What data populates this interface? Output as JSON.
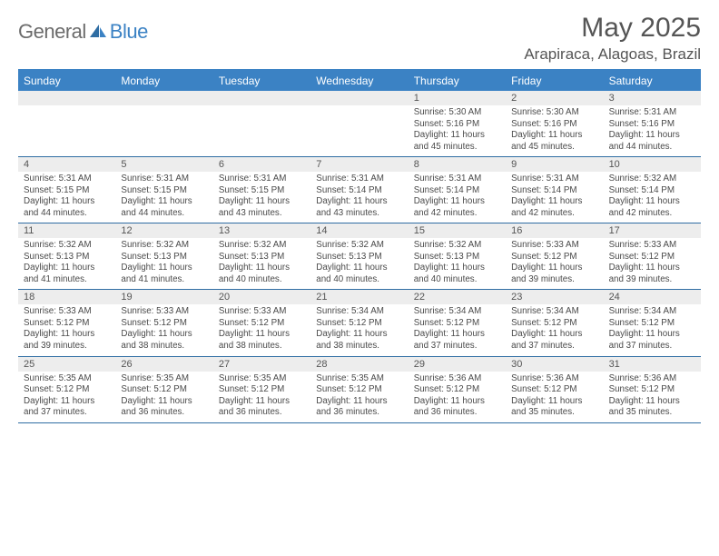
{
  "logo": {
    "text1": "General",
    "text2": "Blue"
  },
  "title": "May 2025",
  "location": "Arapiraca, Alagoas, Brazil",
  "colors": {
    "header_bg": "#3b82c4",
    "header_text": "#ffffff",
    "border": "#2f6da3",
    "daynum_bg": "#ededed",
    "body_text": "#4a4a4a",
    "title_text": "#555555"
  },
  "layout": {
    "columns": 7,
    "rows": 5,
    "day_font_size_pt": 7.5,
    "dow_font_size_pt": 9,
    "title_font_size_pt": 22
  },
  "day_names": [
    "Sunday",
    "Monday",
    "Tuesday",
    "Wednesday",
    "Thursday",
    "Friday",
    "Saturday"
  ],
  "weeks": [
    [
      {
        "n": "",
        "sr": "",
        "ss": "",
        "dl": ""
      },
      {
        "n": "",
        "sr": "",
        "ss": "",
        "dl": ""
      },
      {
        "n": "",
        "sr": "",
        "ss": "",
        "dl": ""
      },
      {
        "n": "",
        "sr": "",
        "ss": "",
        "dl": ""
      },
      {
        "n": "1",
        "sr": "Sunrise: 5:30 AM",
        "ss": "Sunset: 5:16 PM",
        "dl": "Daylight: 11 hours and 45 minutes."
      },
      {
        "n": "2",
        "sr": "Sunrise: 5:30 AM",
        "ss": "Sunset: 5:16 PM",
        "dl": "Daylight: 11 hours and 45 minutes."
      },
      {
        "n": "3",
        "sr": "Sunrise: 5:31 AM",
        "ss": "Sunset: 5:16 PM",
        "dl": "Daylight: 11 hours and 44 minutes."
      }
    ],
    [
      {
        "n": "4",
        "sr": "Sunrise: 5:31 AM",
        "ss": "Sunset: 5:15 PM",
        "dl": "Daylight: 11 hours and 44 minutes."
      },
      {
        "n": "5",
        "sr": "Sunrise: 5:31 AM",
        "ss": "Sunset: 5:15 PM",
        "dl": "Daylight: 11 hours and 44 minutes."
      },
      {
        "n": "6",
        "sr": "Sunrise: 5:31 AM",
        "ss": "Sunset: 5:15 PM",
        "dl": "Daylight: 11 hours and 43 minutes."
      },
      {
        "n": "7",
        "sr": "Sunrise: 5:31 AM",
        "ss": "Sunset: 5:14 PM",
        "dl": "Daylight: 11 hours and 43 minutes."
      },
      {
        "n": "8",
        "sr": "Sunrise: 5:31 AM",
        "ss": "Sunset: 5:14 PM",
        "dl": "Daylight: 11 hours and 42 minutes."
      },
      {
        "n": "9",
        "sr": "Sunrise: 5:31 AM",
        "ss": "Sunset: 5:14 PM",
        "dl": "Daylight: 11 hours and 42 minutes."
      },
      {
        "n": "10",
        "sr": "Sunrise: 5:32 AM",
        "ss": "Sunset: 5:14 PM",
        "dl": "Daylight: 11 hours and 42 minutes."
      }
    ],
    [
      {
        "n": "11",
        "sr": "Sunrise: 5:32 AM",
        "ss": "Sunset: 5:13 PM",
        "dl": "Daylight: 11 hours and 41 minutes."
      },
      {
        "n": "12",
        "sr": "Sunrise: 5:32 AM",
        "ss": "Sunset: 5:13 PM",
        "dl": "Daylight: 11 hours and 41 minutes."
      },
      {
        "n": "13",
        "sr": "Sunrise: 5:32 AM",
        "ss": "Sunset: 5:13 PM",
        "dl": "Daylight: 11 hours and 40 minutes."
      },
      {
        "n": "14",
        "sr": "Sunrise: 5:32 AM",
        "ss": "Sunset: 5:13 PM",
        "dl": "Daylight: 11 hours and 40 minutes."
      },
      {
        "n": "15",
        "sr": "Sunrise: 5:32 AM",
        "ss": "Sunset: 5:13 PM",
        "dl": "Daylight: 11 hours and 40 minutes."
      },
      {
        "n": "16",
        "sr": "Sunrise: 5:33 AM",
        "ss": "Sunset: 5:12 PM",
        "dl": "Daylight: 11 hours and 39 minutes."
      },
      {
        "n": "17",
        "sr": "Sunrise: 5:33 AM",
        "ss": "Sunset: 5:12 PM",
        "dl": "Daylight: 11 hours and 39 minutes."
      }
    ],
    [
      {
        "n": "18",
        "sr": "Sunrise: 5:33 AM",
        "ss": "Sunset: 5:12 PM",
        "dl": "Daylight: 11 hours and 39 minutes."
      },
      {
        "n": "19",
        "sr": "Sunrise: 5:33 AM",
        "ss": "Sunset: 5:12 PM",
        "dl": "Daylight: 11 hours and 38 minutes."
      },
      {
        "n": "20",
        "sr": "Sunrise: 5:33 AM",
        "ss": "Sunset: 5:12 PM",
        "dl": "Daylight: 11 hours and 38 minutes."
      },
      {
        "n": "21",
        "sr": "Sunrise: 5:34 AM",
        "ss": "Sunset: 5:12 PM",
        "dl": "Daylight: 11 hours and 38 minutes."
      },
      {
        "n": "22",
        "sr": "Sunrise: 5:34 AM",
        "ss": "Sunset: 5:12 PM",
        "dl": "Daylight: 11 hours and 37 minutes."
      },
      {
        "n": "23",
        "sr": "Sunrise: 5:34 AM",
        "ss": "Sunset: 5:12 PM",
        "dl": "Daylight: 11 hours and 37 minutes."
      },
      {
        "n": "24",
        "sr": "Sunrise: 5:34 AM",
        "ss": "Sunset: 5:12 PM",
        "dl": "Daylight: 11 hours and 37 minutes."
      }
    ],
    [
      {
        "n": "25",
        "sr": "Sunrise: 5:35 AM",
        "ss": "Sunset: 5:12 PM",
        "dl": "Daylight: 11 hours and 37 minutes."
      },
      {
        "n": "26",
        "sr": "Sunrise: 5:35 AM",
        "ss": "Sunset: 5:12 PM",
        "dl": "Daylight: 11 hours and 36 minutes."
      },
      {
        "n": "27",
        "sr": "Sunrise: 5:35 AM",
        "ss": "Sunset: 5:12 PM",
        "dl": "Daylight: 11 hours and 36 minutes."
      },
      {
        "n": "28",
        "sr": "Sunrise: 5:35 AM",
        "ss": "Sunset: 5:12 PM",
        "dl": "Daylight: 11 hours and 36 minutes."
      },
      {
        "n": "29",
        "sr": "Sunrise: 5:36 AM",
        "ss": "Sunset: 5:12 PM",
        "dl": "Daylight: 11 hours and 36 minutes."
      },
      {
        "n": "30",
        "sr": "Sunrise: 5:36 AM",
        "ss": "Sunset: 5:12 PM",
        "dl": "Daylight: 11 hours and 35 minutes."
      },
      {
        "n": "31",
        "sr": "Sunrise: 5:36 AM",
        "ss": "Sunset: 5:12 PM",
        "dl": "Daylight: 11 hours and 35 minutes."
      }
    ]
  ]
}
